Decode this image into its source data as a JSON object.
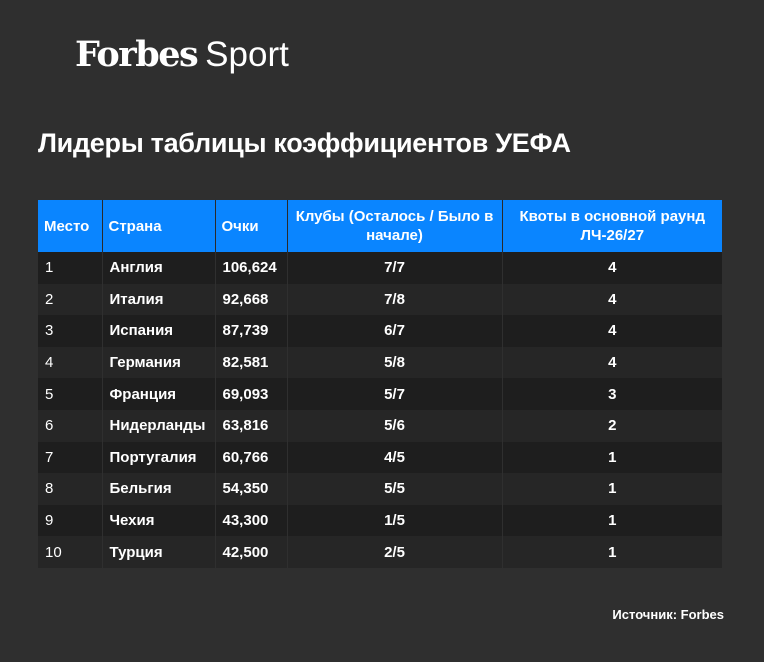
{
  "logo": {
    "brand": "Forbes",
    "section": "Sport"
  },
  "title": "Лидеры таблицы коэффициентов УЕФА",
  "table": {
    "headers": {
      "rank": "Место",
      "country": "Страна",
      "points": "Очки",
      "clubs": "Клубы (Осталось / Было в начале)",
      "quota": "Квоты в основной раунд ЛЧ-26/27"
    },
    "rows": [
      {
        "rank": "1",
        "country": "Англия",
        "points": "106,624",
        "clubs": "7/7",
        "quota": "4"
      },
      {
        "rank": "2",
        "country": "Италия",
        "points": "92,668",
        "clubs": "7/8",
        "quota": "4"
      },
      {
        "rank": "3",
        "country": "Испания",
        "points": "87,739",
        "clubs": "6/7",
        "quota": "4"
      },
      {
        "rank": "4",
        "country": "Германия",
        "points": "82,581",
        "clubs": "5/8",
        "quota": "4"
      },
      {
        "rank": "5",
        "country": "Франция",
        "points": "69,093",
        "clubs": "5/7",
        "quota": "3"
      },
      {
        "rank": "6",
        "country": "Нидерланды",
        "points": "63,816",
        "clubs": "5/6",
        "quota": "2"
      },
      {
        "rank": "7",
        "country": "Португалия",
        "points": "60,766",
        "clubs": "4/5",
        "quota": "1"
      },
      {
        "rank": "8",
        "country": "Бельгия",
        "points": "54,350",
        "clubs": "5/5",
        "quota": "1"
      },
      {
        "rank": "9",
        "country": "Чехия",
        "points": "43,300",
        "clubs": "1/5",
        "quota": "1"
      },
      {
        "rank": "10",
        "country": "Турция",
        "points": "42,500",
        "clubs": "2/5",
        "quota": "1"
      }
    ]
  },
  "source": "Источник: Forbes",
  "colors": {
    "background": "#2f2f2f",
    "header": "#0a85ff",
    "row_dark": "#1e1e1e",
    "row_light": "#262626",
    "text": "#ffffff"
  }
}
